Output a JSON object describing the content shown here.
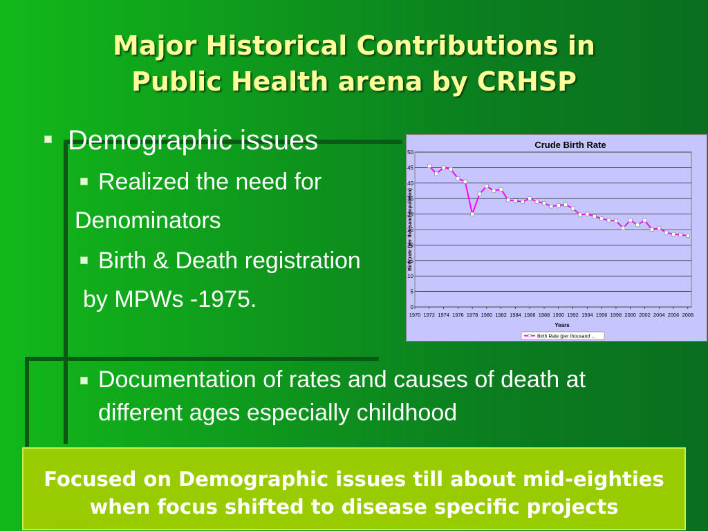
{
  "slide": {
    "title_line1": "Major Historical Contributions in",
    "title_line2": "Public Health arena by CRHSP",
    "bullets": {
      "demographic": "Demographic issues",
      "realized": "Realized the need for",
      "denominators": "Denominators",
      "birth_death": "Birth & Death registration",
      "mpws": "by MPWs -1975.",
      "documentation_line1": "Documentation of rates and causes of death at",
      "documentation_line2": "different ages especially childhood"
    },
    "focus_box": {
      "line1": "Focused on Demographic issues till about mid-eighties",
      "line2": "when focus shifted to disease specific projects"
    },
    "colors": {
      "title": "#ffff99",
      "focus_box_bg": "#99cc00",
      "chart_plot_bg": "#c6c6ff",
      "series_line": "#ff00ff"
    }
  },
  "chart_data": {
    "type": "line",
    "title": "Crude Birth Rate",
    "xlabel": "Years",
    "ylabel": "Birth rate (per thousand population)",
    "ylim": [
      0,
      50
    ],
    "yticks": [
      0,
      5,
      10,
      15,
      20,
      25,
      30,
      35,
      40,
      45,
      50
    ],
    "xtick_labels": [
      "1970",
      "1972",
      "1974",
      "1976",
      "1978",
      "1980",
      "1982",
      "1984",
      "1986",
      "1988",
      "1990",
      "1992",
      "1994",
      "1996",
      "1998",
      "2000",
      "2002",
      "2004",
      "2006",
      "2008"
    ],
    "legend": "Birth Rate (per thousand ...",
    "legend_position": "bottom",
    "grid": true,
    "series": [
      {
        "name": "Birth Rate (per thousand ...",
        "x": [
          1972,
          1973,
          1974,
          1975,
          1976,
          1977,
          1978,
          1979,
          1980,
          1981,
          1982,
          1983,
          1984,
          1985,
          1986,
          1987,
          1988,
          1989,
          1990,
          1991,
          1992,
          1993,
          1994,
          1995,
          1996,
          1997,
          1998,
          1999,
          2000,
          2001,
          2002,
          2003,
          2004,
          2005,
          2006,
          2007,
          2008
        ],
        "values": [
          45.5,
          43.0,
          45.0,
          44.5,
          41.5,
          40.5,
          30.0,
          36.5,
          39.0,
          37.5,
          38.0,
          34.5,
          34.3,
          34.0,
          35.0,
          34.0,
          33.5,
          32.5,
          32.8,
          33.0,
          31.8,
          29.8,
          30.0,
          29.3,
          28.5,
          28.0,
          27.8,
          25.5,
          28.0,
          26.5,
          28.0,
          25.0,
          25.5,
          24.0,
          23.5,
          23.3,
          23.0
        ]
      }
    ]
  }
}
